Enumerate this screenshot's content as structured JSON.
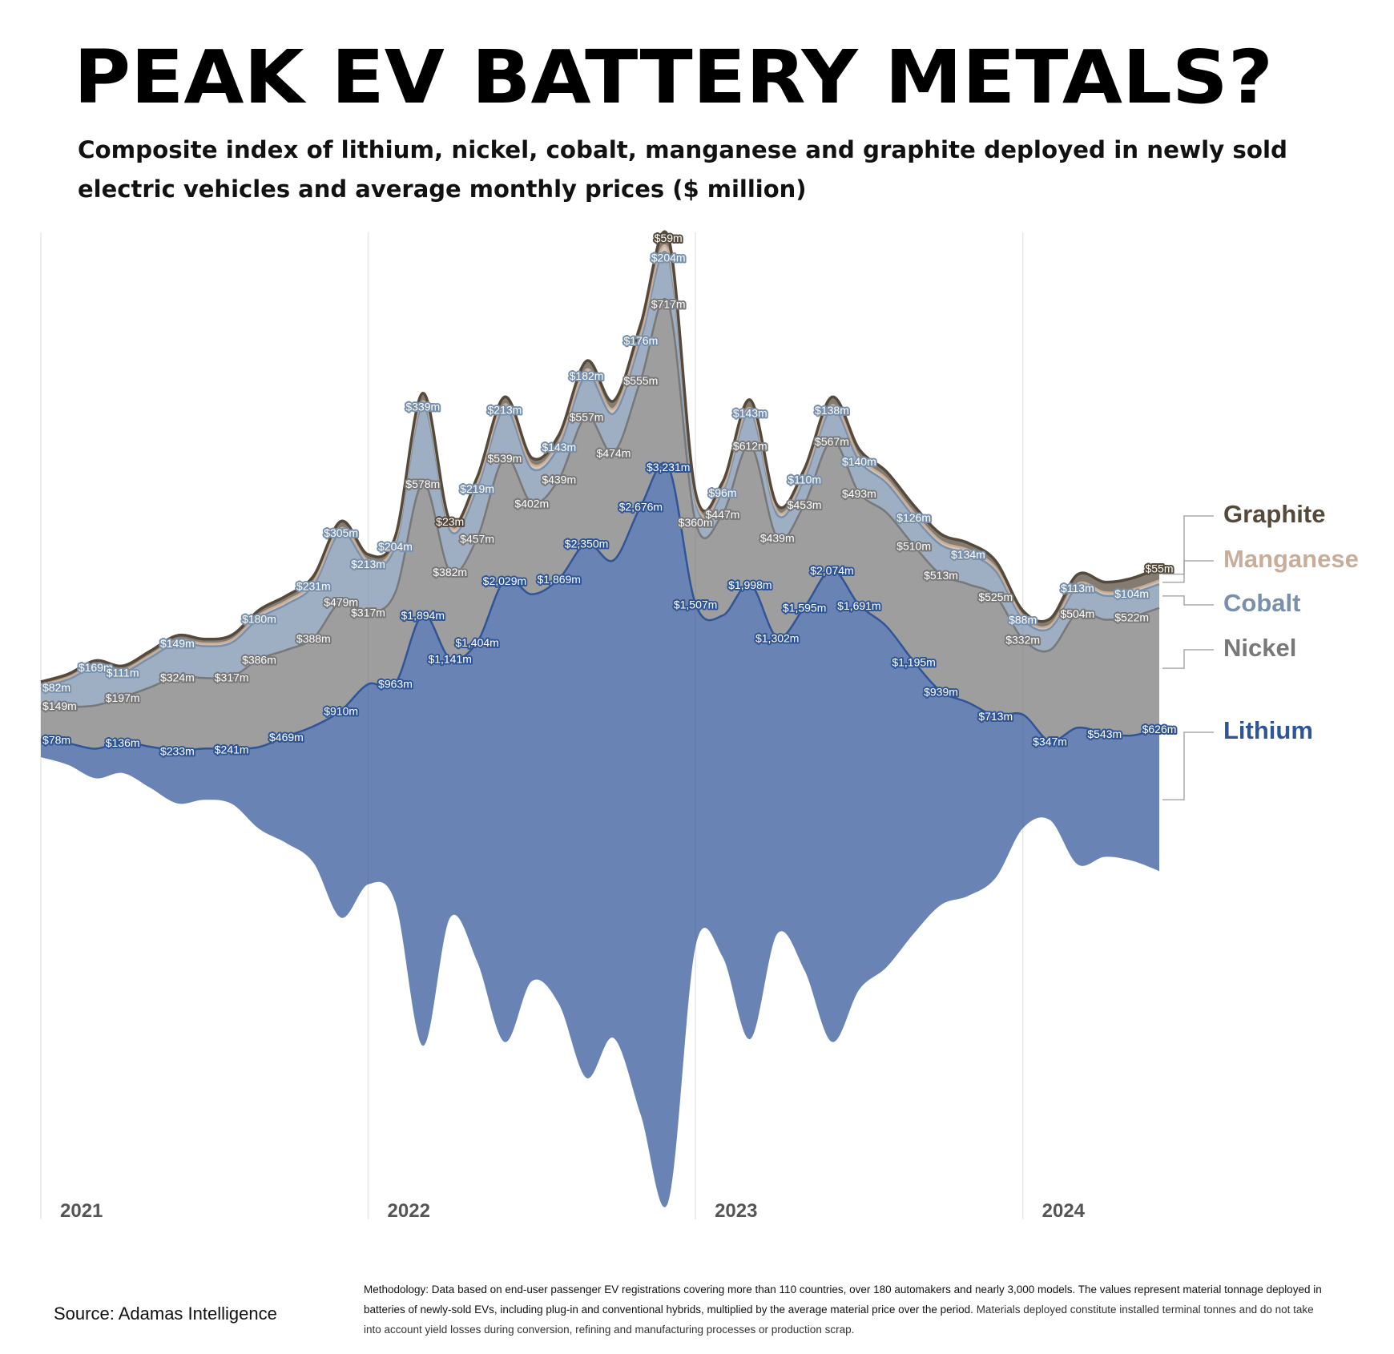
{
  "chart_data": {
    "type": "streamgraph",
    "title": "PEAK EV BATTERY METALS?",
    "subtitle": [
      "Composite index of lithium, nickel, cobalt, manganese and graphite deployed in newly sold",
      "electric vehicles and average monthly prices ($ million)"
    ],
    "source": "Source: Adamas Intelligence",
    "methodology": "Methodology: Data based on end-user passenger EV registrations covering more than 110 countries, over 180 automakers and nearly 3,000 models.  The values represent material tonnage deployed in batteries of newly-sold EVs, including plug-in and conventional hybrids, multiplied by the average material price over the period.",
    "methodology_note": "Materials deployed constitute installed terminal tonnes and do not take into account yield losses during conversion, refining and manufacturing processes or production scrap.",
    "x": [
      2021,
      2021.083,
      2021.167,
      2021.25,
      2021.333,
      2021.417,
      2021.5,
      2021.583,
      2021.667,
      2021.75,
      2021.833,
      2021.917,
      2022,
      2022.083,
      2022.167,
      2022.25,
      2022.333,
      2022.417,
      2022.5,
      2022.583,
      2022.667,
      2022.75,
      2022.833,
      2022.917,
      2023,
      2023.083,
      2023.167,
      2023.25,
      2023.333,
      2023.417,
      2023.5,
      2023.583,
      2023.667,
      2023.75,
      2023.833,
      2023.917,
      2024,
      2024.083,
      2024.167,
      2024.25,
      2024.333,
      2024.417
    ],
    "xlim": [
      2021,
      2024.417
    ],
    "xticks": [
      2021,
      2022,
      2023,
      2024
    ],
    "grid": true,
    "series": [
      {
        "name": "Lithium",
        "color": "#2f5597",
        "values": [
          78,
          95,
          130,
          136,
          180,
          233,
          225,
          241,
          360,
          469,
          600,
          910,
          880,
          963,
          1894,
          1141,
          1404,
          2029,
          1700,
          1869,
          2350,
          2100,
          2676,
          3231,
          1507,
          1500,
          1998,
          1302,
          1595,
          2074,
          1691,
          1500,
          1195,
          939,
          850,
          713,
          500,
          347,
          600,
          543,
          550,
          626
        ],
        "value_labels": [
          "$78m",
          null,
          null,
          "$136m",
          null,
          "$233m",
          null,
          "$241m",
          null,
          "$469m",
          null,
          "$910m",
          null,
          "$963m",
          "$1,894m",
          "$1,141m",
          "$1,404m",
          "$2,029m",
          null,
          "$1,869m",
          "$2,350m",
          null,
          "$2,676m",
          "$3,231m",
          "$1,507m",
          null,
          "$1,998m",
          "$1,302m",
          "$1,595m",
          "$2,074m",
          "$1,691m",
          null,
          "$1,195m",
          "$939m",
          null,
          "$713m",
          null,
          "$347m",
          null,
          "$543m",
          null,
          "$626m"
        ]
      },
      {
        "name": "Nickel",
        "color": "#787878",
        "values": [
          149,
          160,
          190,
          197,
          260,
          324,
          310,
          317,
          386,
          380,
          388,
          479,
          317,
          400,
          578,
          382,
          457,
          539,
          402,
          439,
          557,
          474,
          555,
          717,
          360,
          447,
          612,
          439,
          453,
          567,
          493,
          500,
          510,
          513,
          520,
          525,
          332,
          400,
          504,
          500,
          522,
          530
        ],
        "value_labels": [
          "$149m",
          null,
          null,
          "$197m",
          null,
          "$324m",
          null,
          "$317m",
          "$386m",
          null,
          "$388m",
          "$479m",
          "$317m",
          null,
          "$578m",
          "$382m",
          "$457m",
          "$539m",
          "$402m",
          "$439m",
          "$557m",
          "$474m",
          "$555m",
          "$717m",
          "$360m",
          "$447m",
          "$612m",
          "$439m",
          "$453m",
          "$567m",
          "$493m",
          null,
          "$510m",
          "$513m",
          null,
          "$525m",
          "$332m",
          null,
          "$504m",
          null,
          "$522m",
          null
        ]
      },
      {
        "name": "Cobalt",
        "color": "#7890ac",
        "values": [
          82,
          120,
          169,
          111,
          130,
          149,
          140,
          150,
          180,
          200,
          231,
          305,
          213,
          204,
          339,
          180,
          219,
          213,
          150,
          143,
          182,
          170,
          176,
          204,
          90,
          96,
          143,
          100,
          110,
          138,
          140,
          130,
          126,
          130,
          134,
          110,
          88,
          95,
          113,
          105,
          104,
          105
        ],
        "value_labels": [
          "$82m",
          null,
          "$169m",
          "$111m",
          null,
          "$149m",
          null,
          null,
          "$180m",
          null,
          "$231m",
          "$305m",
          "$213m",
          "$204m",
          "$339m",
          null,
          "$219m",
          "$213m",
          null,
          "$143m",
          "$182m",
          null,
          "$176m",
          "$204m",
          null,
          "$96m",
          "$143m",
          null,
          "$110m",
          "$138m",
          "$140m",
          null,
          "$126m",
          null,
          "$134m",
          null,
          "$88m",
          null,
          "$113m",
          null,
          "$104m",
          null
        ]
      },
      {
        "name": "Manganese",
        "color": "#c8ae9a",
        "values": [
          8,
          9,
          10,
          10,
          11,
          12,
          12,
          13,
          14,
          15,
          16,
          18,
          16,
          17,
          22,
          18,
          20,
          22,
          20,
          21,
          24,
          22,
          25,
          28,
          15,
          16,
          20,
          16,
          17,
          20,
          19,
          18,
          18,
          17,
          17,
          16,
          13,
          14,
          16,
          15,
          15,
          16
        ]
      },
      {
        "name": "Graphite",
        "color": "#54493a",
        "values": [
          14,
          15,
          18,
          17,
          18,
          20,
          19,
          20,
          22,
          23,
          25,
          30,
          24,
          25,
          35,
          23,
          28,
          32,
          28,
          30,
          38,
          34,
          45,
          59,
          25,
          28,
          36,
          26,
          28,
          35,
          33,
          32,
          32,
          31,
          30,
          29,
          24,
          28,
          40,
          45,
          50,
          55
        ],
        "value_labels": [
          null,
          null,
          null,
          null,
          null,
          null,
          null,
          null,
          null,
          null,
          null,
          null,
          null,
          null,
          null,
          "$23m",
          null,
          null,
          null,
          null,
          null,
          null,
          null,
          "$59m",
          null,
          null,
          null,
          null,
          null,
          null,
          null,
          null,
          null,
          null,
          null,
          null,
          null,
          null,
          null,
          null,
          null,
          "$55m"
        ]
      }
    ]
  }
}
